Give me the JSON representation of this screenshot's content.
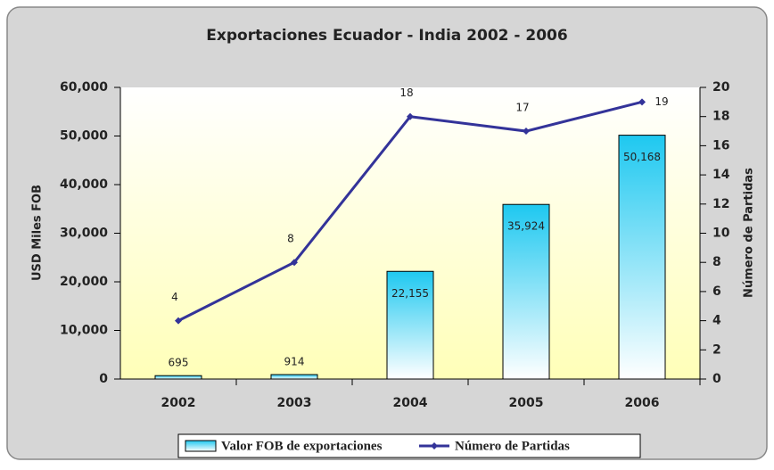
{
  "chart_data": {
    "type": "bar",
    "title": "Exportaciones Ecuador - India 2002 - 2006",
    "categories": [
      "2002",
      "2003",
      "2004",
      "2005",
      "2006"
    ],
    "series": [
      {
        "name": "Valor FOB de exportaciones",
        "type": "bar",
        "color": "#1ec8f0",
        "values": [
          695,
          914,
          22155,
          35924,
          50168
        ],
        "value_labels": [
          "695",
          "914",
          "22,155",
          "35,924",
          "50,168"
        ]
      },
      {
        "name": "Número de Partidas",
        "type": "line",
        "axis": "y2",
        "color": "#333399",
        "values": [
          4,
          8,
          18,
          17,
          19
        ]
      }
    ],
    "ylabel": "USD Miles FOB",
    "y2label": "Número de Partidas",
    "ylim": [
      0,
      60000
    ],
    "yticks": [
      0,
      {
        "value": 10000,
        "label": "10,000"
      },
      {
        "value": 20000,
        "label": "20,000"
      },
      {
        "value": 30000,
        "label": "30,000"
      },
      {
        "value": 40000,
        "label": "40,000"
      },
      {
        "value": 50000,
        "label": "50,000"
      },
      {
        "value": 60000,
        "label": "60,000"
      }
    ],
    "y2lim": [
      0,
      20
    ],
    "y2ticks": [
      0,
      2,
      4,
      6,
      8,
      10,
      12,
      14,
      16,
      18,
      20
    ],
    "legend": "bottom"
  }
}
